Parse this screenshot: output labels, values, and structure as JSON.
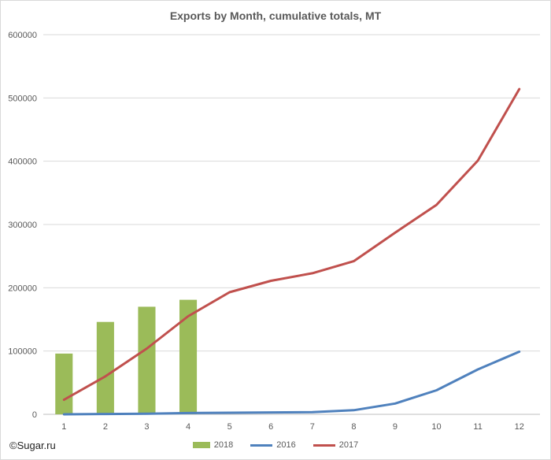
{
  "chart_data": {
    "type": "bar+line",
    "title": "Exports by Month, cumulative totals, MT",
    "categories": [
      "1",
      "2",
      "3",
      "4",
      "5",
      "6",
      "7",
      "8",
      "9",
      "10",
      "11",
      "12"
    ],
    "y_ticks": [
      "0",
      "100000",
      "200000",
      "300000",
      "400000",
      "500000",
      "600000"
    ],
    "ylim": [
      0,
      600000
    ],
    "grid": true,
    "legend_position": "bottom",
    "bars": [
      {
        "name": "2018",
        "color": "#9bbb59",
        "values": [
          96000,
          146000,
          170000,
          181000
        ]
      }
    ],
    "lines": [
      {
        "name": "2016",
        "color": "#4f81bd",
        "values": [
          0,
          500,
          1000,
          2000,
          2500,
          3000,
          3500,
          6500,
          17000,
          38000,
          71000,
          99000
        ]
      },
      {
        "name": "2017",
        "color": "#c0504d",
        "values": [
          23000,
          60000,
          104000,
          155000,
          193000,
          211000,
          223000,
          242000,
          287000,
          331000,
          401000,
          514000
        ]
      }
    ]
  },
  "legend": [
    {
      "label": "2018",
      "kind": "bar",
      "color": "#9bbb59"
    },
    {
      "label": "2016",
      "kind": "line",
      "color": "#4f81bd"
    },
    {
      "label": "2017",
      "kind": "line",
      "color": "#c0504d"
    }
  ],
  "watermark": "©Sugar.ru"
}
